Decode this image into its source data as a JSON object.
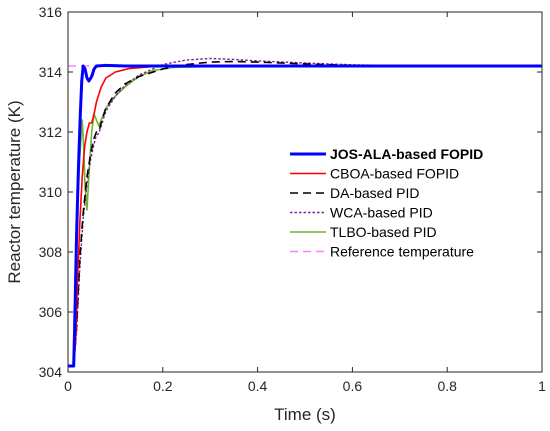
{
  "chart_data": {
    "type": "line",
    "title": "",
    "xlabel": "Time (s)",
    "ylabel": "Reactor temperature (K)",
    "xlim": [
      0,
      1
    ],
    "ylim": [
      304,
      316
    ],
    "xticks": [
      0,
      0.2,
      0.4,
      0.6,
      0.8,
      1
    ],
    "xtick_labels": [
      "0",
      "0.2",
      "0.4",
      "0.6",
      "0.8",
      "1"
    ],
    "yticks": [
      304,
      306,
      308,
      310,
      312,
      314,
      316
    ],
    "ytick_labels": [
      "304",
      "306",
      "308",
      "310",
      "312",
      "314",
      "316"
    ],
    "grid": false,
    "legend_position": "center-right",
    "series": [
      {
        "name": "JOS-ALA-based FOPID",
        "color": "#0000ff",
        "style": "solid-thick",
        "points": [
          [
            0,
            304.2
          ],
          [
            0.012,
            304.2
          ],
          [
            0.014,
            305.5
          ],
          [
            0.018,
            308.5
          ],
          [
            0.022,
            310.8
          ],
          [
            0.026,
            312.6
          ],
          [
            0.029,
            313.7
          ],
          [
            0.032,
            314.2
          ],
          [
            0.036,
            314.1
          ],
          [
            0.04,
            313.8
          ],
          [
            0.044,
            313.7
          ],
          [
            0.05,
            313.85
          ],
          [
            0.055,
            314.1
          ],
          [
            0.06,
            314.2
          ],
          [
            0.08,
            314.22
          ],
          [
            0.12,
            314.2
          ],
          [
            0.3,
            314.2
          ],
          [
            1,
            314.2
          ]
        ]
      },
      {
        "name": "CBOA-based FOPID",
        "color": "#ff0000",
        "style": "solid",
        "points": [
          [
            0,
            304.2
          ],
          [
            0.012,
            304.2
          ],
          [
            0.016,
            305.0
          ],
          [
            0.02,
            307.0
          ],
          [
            0.025,
            309.0
          ],
          [
            0.03,
            310.5
          ],
          [
            0.035,
            311.5
          ],
          [
            0.04,
            312.0
          ],
          [
            0.045,
            312.3
          ],
          [
            0.05,
            312.3
          ],
          [
            0.055,
            312.6
          ],
          [
            0.06,
            313.0
          ],
          [
            0.07,
            313.5
          ],
          [
            0.08,
            313.8
          ],
          [
            0.1,
            314.0
          ],
          [
            0.13,
            314.12
          ],
          [
            0.18,
            314.18
          ],
          [
            0.25,
            314.2
          ],
          [
            1,
            314.2
          ]
        ]
      },
      {
        "name": "DA-based PID",
        "color": "#000000",
        "style": "dashed",
        "points": [
          [
            0,
            304.2
          ],
          [
            0.012,
            304.2
          ],
          [
            0.018,
            305.5
          ],
          [
            0.025,
            307.8
          ],
          [
            0.032,
            309.3
          ],
          [
            0.04,
            310.5
          ],
          [
            0.048,
            311.3
          ],
          [
            0.055,
            311.8
          ],
          [
            0.06,
            312.0
          ],
          [
            0.065,
            312.0
          ],
          [
            0.07,
            312.3
          ],
          [
            0.08,
            312.8
          ],
          [
            0.1,
            313.3
          ],
          [
            0.12,
            313.6
          ],
          [
            0.15,
            313.85
          ],
          [
            0.2,
            314.1
          ],
          [
            0.25,
            314.25
          ],
          [
            0.3,
            314.33
          ],
          [
            0.35,
            314.35
          ],
          [
            0.4,
            314.33
          ],
          [
            0.5,
            314.27
          ],
          [
            0.6,
            314.22
          ],
          [
            0.7,
            314.2
          ],
          [
            1,
            314.2
          ]
        ]
      },
      {
        "name": "WCA-based PID",
        "color": "#7a1f9e",
        "style": "dotted",
        "points": [
          [
            0,
            304.2
          ],
          [
            0.012,
            304.2
          ],
          [
            0.018,
            305.3
          ],
          [
            0.025,
            307.5
          ],
          [
            0.032,
            309.1
          ],
          [
            0.04,
            310.3
          ],
          [
            0.048,
            311.1
          ],
          [
            0.055,
            311.6
          ],
          [
            0.06,
            311.9
          ],
          [
            0.065,
            311.95
          ],
          [
            0.07,
            312.2
          ],
          [
            0.08,
            312.7
          ],
          [
            0.1,
            313.2
          ],
          [
            0.12,
            313.55
          ],
          [
            0.15,
            313.9
          ],
          [
            0.2,
            314.25
          ],
          [
            0.25,
            314.4
          ],
          [
            0.3,
            314.45
          ],
          [
            0.35,
            314.42
          ],
          [
            0.4,
            314.37
          ],
          [
            0.5,
            314.3
          ],
          [
            0.6,
            314.24
          ],
          [
            0.7,
            314.21
          ],
          [
            1,
            314.2
          ]
        ]
      },
      {
        "name": "TLBO-based PID",
        "color": "#6eb42d",
        "style": "solid",
        "points": [
          [
            0,
            304.2
          ],
          [
            0.012,
            304.2
          ],
          [
            0.015,
            306.5
          ],
          [
            0.02,
            309.5
          ],
          [
            0.025,
            311.2
          ],
          [
            0.03,
            312.4
          ],
          [
            0.033,
            311.5
          ],
          [
            0.036,
            310.2
          ],
          [
            0.04,
            309.4
          ],
          [
            0.045,
            310.8
          ],
          [
            0.05,
            312.0
          ],
          [
            0.055,
            312.6
          ],
          [
            0.06,
            312.4
          ],
          [
            0.065,
            312.2
          ],
          [
            0.07,
            312.4
          ],
          [
            0.08,
            312.8
          ],
          [
            0.09,
            313.0
          ],
          [
            0.1,
            313.2
          ],
          [
            0.12,
            313.5
          ],
          [
            0.15,
            313.85
          ],
          [
            0.18,
            314.05
          ],
          [
            0.22,
            314.15
          ],
          [
            0.3,
            314.18
          ],
          [
            1,
            314.2
          ]
        ]
      },
      {
        "name": "Reference temperature",
        "color": "#ff80ff",
        "style": "dashed",
        "points": [
          [
            0,
            314.2
          ],
          [
            1,
            314.2
          ]
        ]
      }
    ]
  }
}
